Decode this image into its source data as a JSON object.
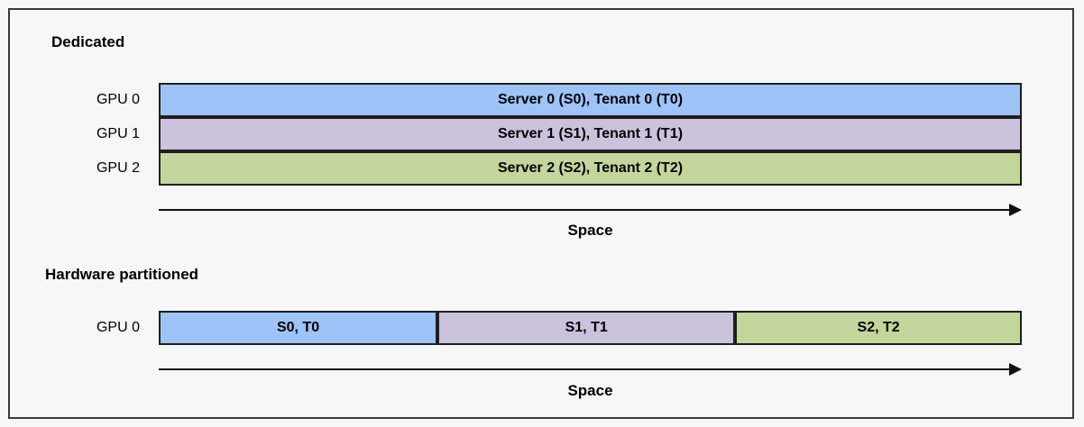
{
  "colors": {
    "background": "#F7F7F7",
    "frame_border": "#3A3A3A",
    "segment_border": "#1F1F1F",
    "arrow": "#111111",
    "segment_blue": "#9DC3F7",
    "segment_purple": "#CBC2DC",
    "segment_green": "#C3D69B"
  },
  "sections": [
    {
      "heading": "Dedicated",
      "axis_label": "Space",
      "rows": [
        {
          "label": "GPU 0",
          "segments": [
            {
              "text": "Server 0 (S0), Tenant 0 (T0)",
              "color": "segment_blue",
              "width_pct": 100
            }
          ]
        },
        {
          "label": "GPU 1",
          "segments": [
            {
              "text": "Server 1 (S1), Tenant 1 (T1)",
              "color": "segment_purple",
              "width_pct": 100
            }
          ]
        },
        {
          "label": "GPU 2",
          "segments": [
            {
              "text": "Server 2 (S2), Tenant 2 (T2)",
              "color": "segment_green",
              "width_pct": 100
            }
          ]
        }
      ]
    },
    {
      "heading": "Hardware partitioned",
      "axis_label": "Space",
      "rows": [
        {
          "label": "GPU 0",
          "segments": [
            {
              "text": "S0, T0",
              "color": "segment_blue",
              "width_pct": 32.3
            },
            {
              "text": "S1, T1",
              "color": "segment_purple",
              "width_pct": 34.5
            },
            {
              "text": "S2, T2",
              "color": "segment_green",
              "width_pct": 33.2
            }
          ]
        }
      ]
    }
  ]
}
